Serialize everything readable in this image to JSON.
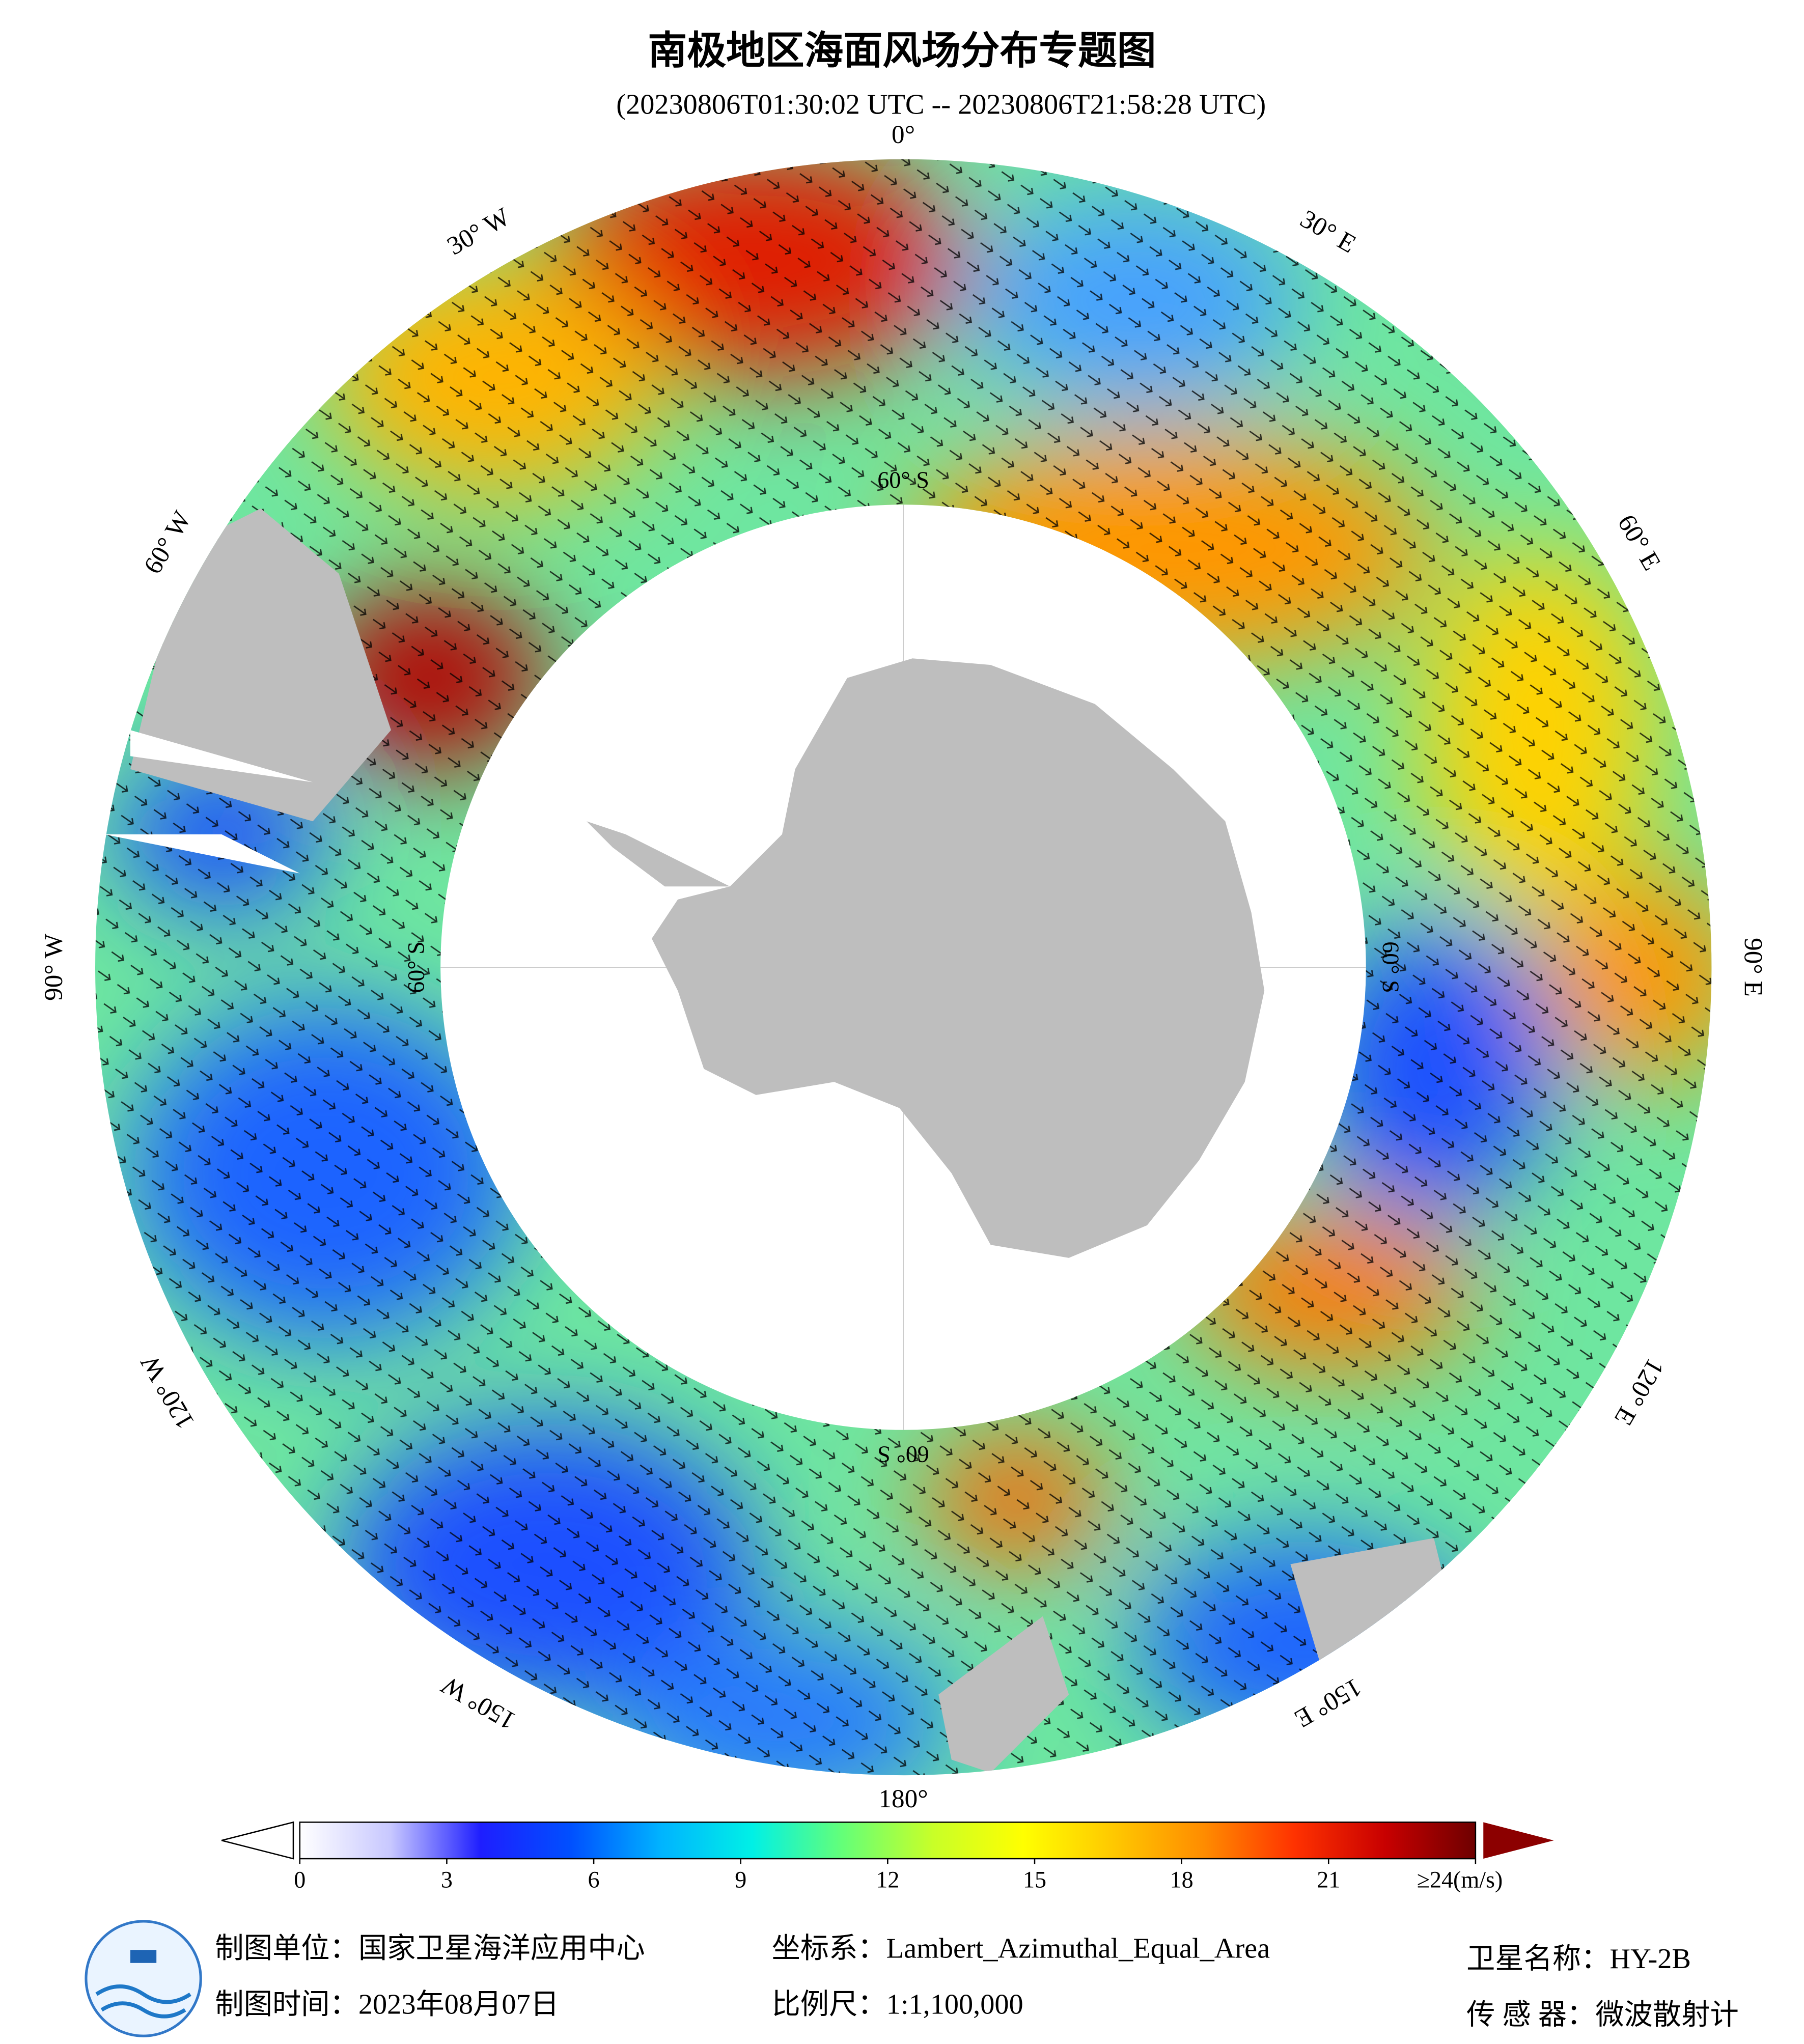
{
  "header": {
    "title": "南极地区海面风场分布专题图",
    "subtitle": "(20230806T01:30:02 UTC -- 20230806T21:58:28 UTC)"
  },
  "map": {
    "lon_labels": [
      "0°",
      "30° E",
      "60° E",
      "90° E",
      "120° E",
      "150° E",
      "180°",
      "150° W",
      "120° W",
      "90° W",
      "60° W",
      "30° W"
    ],
    "lat_labels": [
      "60° S",
      "60° S",
      "60° S",
      "60° S"
    ]
  },
  "colorbar": {
    "range": [
      0,
      24
    ],
    "ticks": [
      0,
      3,
      6,
      9,
      12,
      15,
      18,
      21,
      {
        "value": 24,
        "label": "≥24(m/s)"
      }
    ],
    "colors": [
      "#ffffff",
      "#c8c8ff",
      "#1e1eff",
      "#0050ff",
      "#00b4ff",
      "#00f0e6",
      "#64ff78",
      "#c8ff28",
      "#ffff00",
      "#ffc800",
      "#ff8c00",
      "#ff3200",
      "#c80000",
      "#6e0000"
    ]
  },
  "footer": {
    "agency": "制图单位：国家卫星海洋应用中心",
    "date": "制图时间：2023年08月07日",
    "crs": "坐标系：Lambert_Azimuthal_Equal_Area",
    "scale": "比例尺：1:1,100,000",
    "satellite": "卫星名称：HY-2B",
    "sensor": "传 感 器：微波散射计"
  }
}
